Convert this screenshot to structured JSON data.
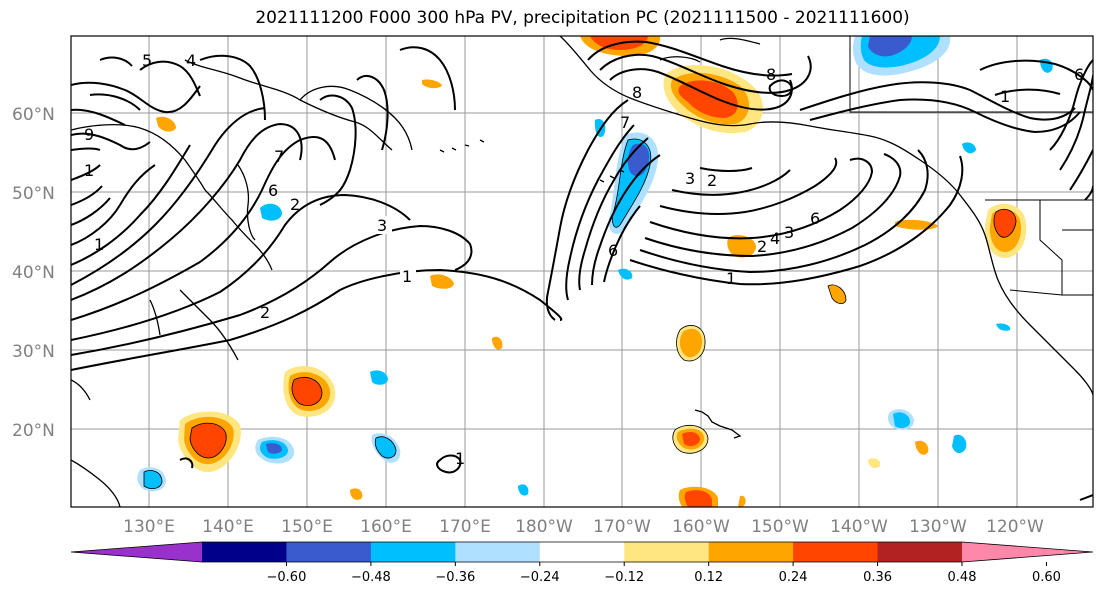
{
  "title": "2021111200 F000 300 hPa PV, precipitation PC (2021111500 - 2021111600)",
  "lat_labels": [
    "60°N",
    "50°N",
    "40°N",
    "30°N",
    "20°N"
  ],
  "lon_labels": [
    "130°E",
    "140°E",
    "150°E",
    "160°E",
    "170°E",
    "180°W",
    "170°W",
    "160°W",
    "150°W",
    "140°W",
    "130°W",
    "120°W"
  ],
  "colorbar": {
    "ticks": [
      "−0.60",
      "−0.48",
      "−0.36",
      "−0.24",
      "−0.12",
      "0.12",
      "0.24",
      "0.36",
      "0.48",
      "0.60"
    ],
    "colors": [
      "#9932CC",
      "#00008B",
      "#3A5BCE",
      "#00BFFF",
      "#B0E0FF",
      "#FFFFFF",
      "#FFE680",
      "#FFA500",
      "#FF4500",
      "#B22222",
      "#FF88AA"
    ]
  },
  "contour_labels": [
    "3",
    "1",
    "2",
    "6",
    "2",
    "3",
    "8",
    "6",
    "3",
    "2",
    "1",
    "4",
    "7",
    "6",
    "1",
    "8",
    "1",
    "5",
    "4",
    "9",
    "1",
    "7",
    "6",
    "2",
    "1"
  ]
}
